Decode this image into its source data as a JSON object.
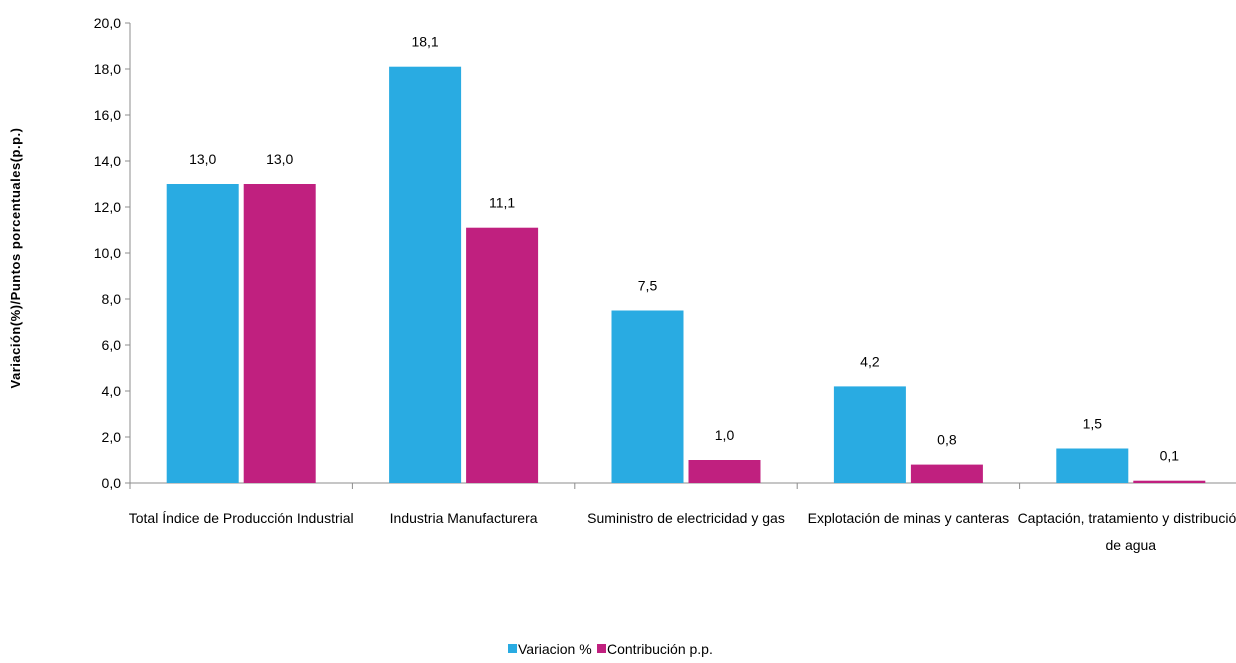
{
  "chart_data": {
    "type": "bar",
    "title": "",
    "xlabel": "",
    "ylabel": "Variación(%)/Puntos porcentuales(p.p.)",
    "ylim": [
      0,
      20
    ],
    "yticks": [
      "0,0",
      "2,0",
      "4,0",
      "6,0",
      "8,0",
      "10,0",
      "12,0",
      "14,0",
      "16,0",
      "18,0",
      "20,0"
    ],
    "categories": [
      [
        "Total Índice de Producción Industrial"
      ],
      [
        "Industria Manufacturera"
      ],
      [
        "Suministro de electricidad y gas"
      ],
      [
        "Explotación de minas y canteras"
      ],
      [
        "Captación, tratamiento y distribución",
        "de agua"
      ]
    ],
    "series": [
      {
        "name": "Variacion %",
        "color": "#29abe2",
        "values": [
          13.0,
          18.1,
          7.5,
          4.2,
          1.5
        ],
        "labels": [
          "13,0",
          "18,1",
          "7,5",
          "4,2",
          "1,5"
        ]
      },
      {
        "name": "Contribución p.p.",
        "color": "#c0207f",
        "values": [
          13.0,
          11.1,
          1.0,
          0.8,
          0.1
        ],
        "labels": [
          "13,0",
          "11,1",
          "1,0",
          "0,8",
          "0,1"
        ]
      }
    ],
    "grid": false,
    "legend_position": "bottom"
  }
}
